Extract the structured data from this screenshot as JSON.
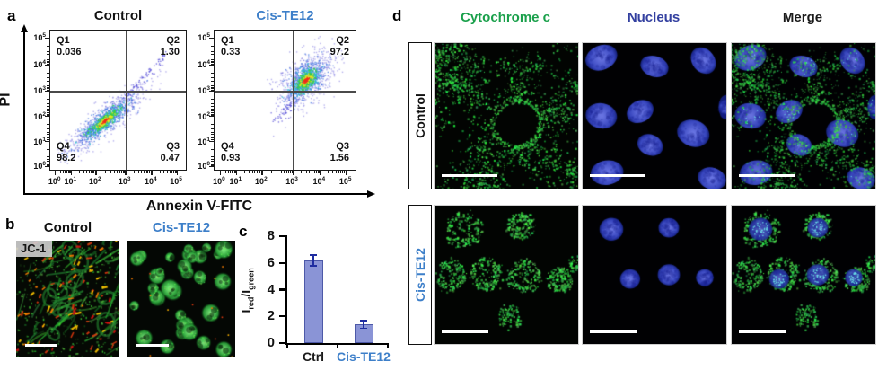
{
  "colors": {
    "accent_blue": "#3d7fc9",
    "cytochrome_green": "#1aa04b",
    "nucleus_indigo": "#3340a0",
    "bar_fill": "#8a94d6",
    "bar_edge": "#4d59a8",
    "error_bar": "#1f2da0"
  },
  "panel_a": {
    "label": "a",
    "y_axis_label": "PI",
    "x_axis_label": "Annexin V-FITC",
    "tick_base": "10",
    "x_tick_exponents": [
      "0",
      "1",
      "2",
      "3",
      "4",
      "5"
    ],
    "y_tick_exponents": [
      "5",
      "4",
      "3",
      "2",
      "1",
      "0"
    ],
    "plots": [
      {
        "id": "control",
        "title": "Control",
        "q1": {
          "name": "Q1",
          "value": "0.036"
        },
        "q2": {
          "name": "Q2",
          "value": "1.30"
        },
        "q3": {
          "name": "Q3",
          "value": "0.47"
        },
        "q4": {
          "name": "Q4",
          "value": "98.2"
        }
      },
      {
        "id": "cis-te12",
        "title": "Cis-TE12",
        "q1": {
          "name": "Q1",
          "value": "0.33"
        },
        "q2": {
          "name": "Q2",
          "value": "97.2"
        },
        "q3": {
          "name": "Q3",
          "value": "1.56"
        },
        "q4": {
          "name": "Q4",
          "value": "0.93"
        }
      }
    ]
  },
  "panel_b": {
    "label": "b",
    "stain_label": "JC-1",
    "columns": [
      {
        "title": "Control"
      },
      {
        "title": "Cis-TE12"
      }
    ]
  },
  "panel_c": {
    "label": "c",
    "ylabel_parts": {
      "base1": "I",
      "sub1": "red",
      "base2": "/I",
      "sub2": "green"
    }
  },
  "panel_d": {
    "label": "d",
    "column_headers": [
      {
        "label": "Cytochrome c"
      },
      {
        "label": "Nucleus"
      },
      {
        "label": "Merge"
      }
    ],
    "rows": [
      {
        "label": "Control"
      },
      {
        "label": "Cis-TE12"
      }
    ]
  },
  "chart_data": [
    {
      "type": "scatter",
      "title": "Control",
      "xlabel": "Annexin V-FITC",
      "ylabel": "PI",
      "x_scale": "log, 10^0 to 10^5",
      "y_scale": "log, 10^0 to 10^5",
      "gates": "quadrant crosshair at ~10^3 / ~10^3",
      "quadrant_percent": {
        "Q1": 0.036,
        "Q2": 1.3,
        "Q3": 0.47,
        "Q4": 98.2
      },
      "description": "dense viable population along diagonal in Q4 with sparse tail into Q2"
    },
    {
      "type": "scatter",
      "title": "Cis-TE12",
      "xlabel": "Annexin V-FITC",
      "ylabel": "PI",
      "x_scale": "log, 10^0 to 10^5",
      "y_scale": "log, 10^0 to 10^5",
      "gates": "quadrant crosshair at ~10^3 / ~10^3",
      "quadrant_percent": {
        "Q1": 0.33,
        "Q2": 97.2,
        "Q3": 1.56,
        "Q4": 0.93
      },
      "description": "dense late-apoptotic population in Q2 just above crosshair"
    },
    {
      "type": "bar",
      "title": "",
      "xlabel": "",
      "ylabel": "Ired/Igreen",
      "categories": [
        "Ctrl",
        "Cis-TE12"
      ],
      "values": [
        6.2,
        1.4
      ],
      "errors": [
        0.4,
        0.3
      ],
      "ylim": [
        0,
        8
      ],
      "yticks": [
        0,
        2,
        4,
        6,
        8
      ],
      "category_colors": [
        "#1a1a1a",
        "#3d7fc9"
      ]
    }
  ]
}
